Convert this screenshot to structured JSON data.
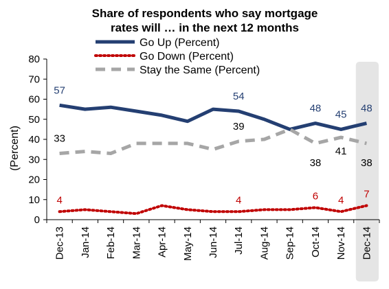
{
  "chart_data": {
    "type": "line",
    "title_lines": [
      "Share of respondents who say mortgage",
      "rates will … in the next 12 months"
    ],
    "ylabel": "(Percent)",
    "xlabel": "",
    "ylim": [
      0,
      80
    ],
    "yticks": [
      0,
      10,
      20,
      30,
      40,
      50,
      60,
      70,
      80
    ],
    "categories": [
      "Dec-13",
      "Jan-14",
      "Feb-14",
      "Mar-14",
      "Apr-14",
      "May-14",
      "Jun-14",
      "Jul-14",
      "Aug-14",
      "Sep-14",
      "Oct-14",
      "Nov-14",
      "Dec-14"
    ],
    "highlight_category": "Dec-14",
    "legend_position": "top-left",
    "grid": false,
    "series": [
      {
        "name": "Go Up (Percent)",
        "color": "#243f72",
        "style": "solid",
        "values": [
          57,
          55,
          56,
          54,
          52,
          49,
          55,
          54,
          50,
          45,
          48,
          45,
          48
        ]
      },
      {
        "name": "Go Down (Percent)",
        "color": "#c00000",
        "style": "dotted",
        "values": [
          4,
          5,
          4,
          3,
          7,
          5,
          4,
          4,
          5,
          5,
          6,
          4,
          7
        ]
      },
      {
        "name": "Stay the Same (Percent)",
        "color": "#a6a6a6",
        "style": "dashed",
        "values": [
          33,
          34,
          33,
          38,
          38,
          38,
          35,
          39,
          40,
          45,
          38,
          41,
          38
        ]
      }
    ],
    "data_labels": [
      {
        "series": 0,
        "index": 0,
        "text": "57"
      },
      {
        "series": 0,
        "index": 7,
        "text": "54"
      },
      {
        "series": 0,
        "index": 10,
        "text": "48"
      },
      {
        "series": 0,
        "index": 11,
        "text": "45"
      },
      {
        "series": 0,
        "index": 12,
        "text": "48"
      },
      {
        "series": 1,
        "index": 0,
        "text": "4"
      },
      {
        "series": 1,
        "index": 7,
        "text": "4"
      },
      {
        "series": 1,
        "index": 10,
        "text": "6"
      },
      {
        "series": 1,
        "index": 11,
        "text": "4"
      },
      {
        "series": 1,
        "index": 12,
        "text": "7"
      },
      {
        "series": 2,
        "index": 0,
        "text": "33"
      },
      {
        "series": 2,
        "index": 7,
        "text": "39"
      },
      {
        "series": 2,
        "index": 10,
        "text": "38"
      },
      {
        "series": 2,
        "index": 11,
        "text": "41"
      },
      {
        "series": 2,
        "index": 12,
        "text": "38"
      }
    ],
    "label_colors": [
      "#243f72",
      "#c00000",
      "#000000"
    ]
  }
}
